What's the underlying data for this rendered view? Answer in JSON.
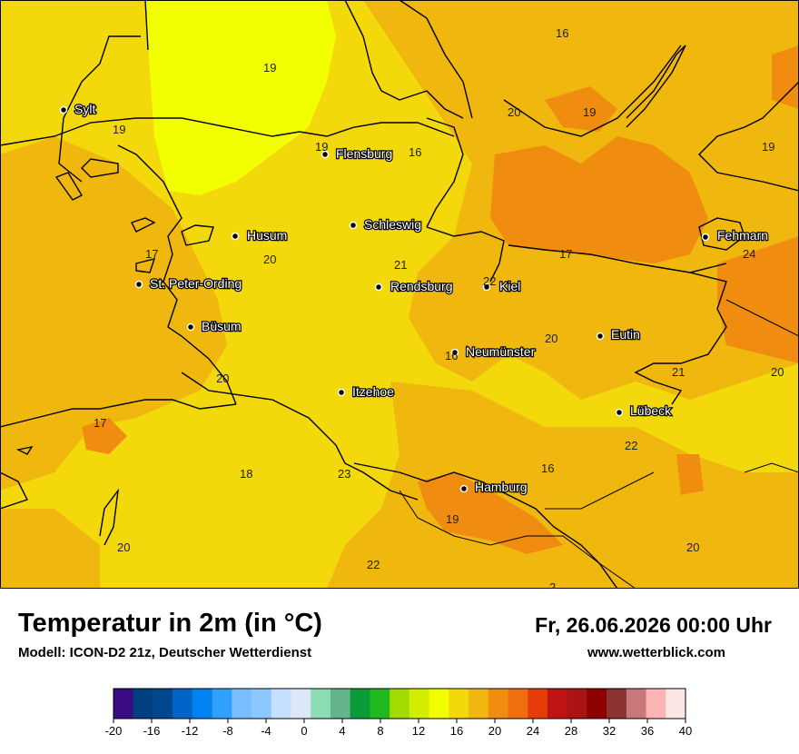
{
  "title": "Temperatur in 2m (in °C)",
  "model": "Modell: ICON-D2 21z, Deutscher Wetterdienst",
  "datetime": "Fr, 26.06.2026 00:00 Uhr",
  "website": "www.wetterblick.com",
  "colors": {
    "t16": "#f2ff00",
    "t18": "#f3d80c",
    "t20": "#f0b70f",
    "t22": "#f08c10"
  },
  "cities": [
    {
      "name": "Sylt"
    },
    {
      "name": "Flensburg"
    },
    {
      "name": "Schleswig"
    },
    {
      "name": "Husum"
    },
    {
      "name": "Fehmarn"
    },
    {
      "name": "St. Peter-Ording"
    },
    {
      "name": "Rendsburg"
    },
    {
      "name": "Kiel"
    },
    {
      "name": "Büsum"
    },
    {
      "name": "Eutin"
    },
    {
      "name": "Neumünster"
    },
    {
      "name": "Itzehoe"
    },
    {
      "name": "Lübeck"
    },
    {
      "name": "Hamburg"
    }
  ],
  "values": [
    "16",
    "19",
    "19",
    "20",
    "19",
    "19",
    "16",
    "19",
    "17",
    "20",
    "21",
    "17",
    "24",
    "22",
    "20",
    "16",
    "20",
    "21",
    "20",
    "17",
    "22",
    "18",
    "23",
    "16",
    "19",
    "20",
    "22",
    "20",
    "2"
  ],
  "scale": {
    "colors": [
      "#3a0c84",
      "#003e82",
      "#00468c",
      "#0064c8",
      "#0082f0",
      "#30a0ff",
      "#78beff",
      "#8cc8ff",
      "#c8e0ff",
      "#dce8f8",
      "#8cdcb4",
      "#64b48c",
      "#0a9b37",
      "#1eb91e",
      "#a0dc00",
      "#d2ed00",
      "#f2ff00",
      "#f3d80c",
      "#f0b70f",
      "#f08c10",
      "#f06e10",
      "#e63c0a",
      "#be1414",
      "#aa1414",
      "#8c0000",
      "#8c3232",
      "#c87878",
      "#ffb4b4",
      "#ffe6e6"
    ],
    "tick_labels": [
      "-20",
      "-16",
      "-12",
      "-8",
      "-4",
      "0",
      "4",
      "8",
      "12",
      "16",
      "20",
      "24",
      "28",
      "32",
      "36",
      "40"
    ]
  }
}
